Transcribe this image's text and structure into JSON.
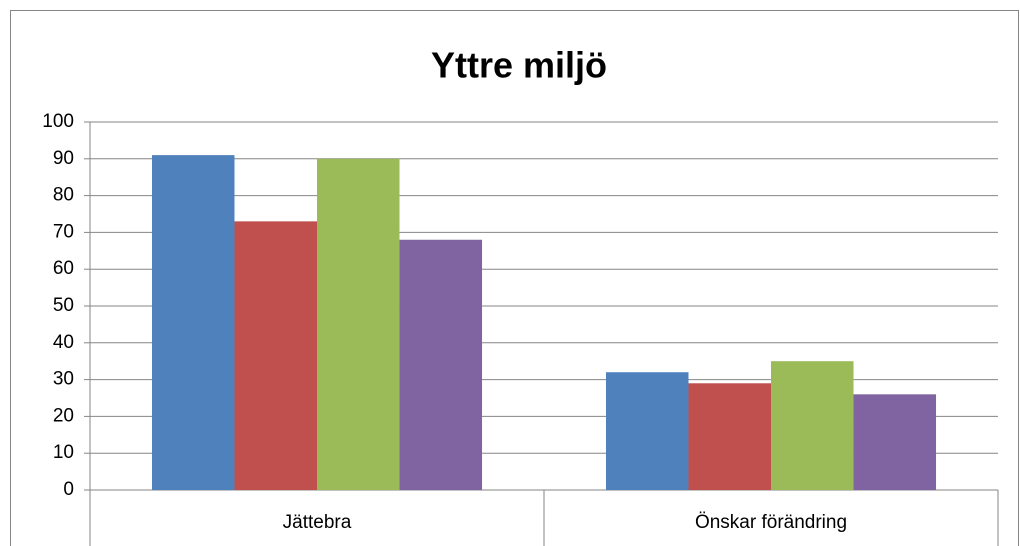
{
  "chart_data": {
    "type": "bar",
    "title": "Yttre miljö",
    "categories": [
      "Jättebra",
      "Önskar förändring"
    ],
    "series": [
      {
        "color": "#4f81bd",
        "values": [
          91,
          32
        ]
      },
      {
        "color": "#c0504d",
        "values": [
          73,
          29
        ]
      },
      {
        "color": "#9bbb59",
        "values": [
          90,
          35
        ]
      },
      {
        "color": "#8064a2",
        "values": [
          68,
          26
        ]
      }
    ],
    "ylim": [
      0,
      100
    ],
    "yticks": [
      0,
      10,
      20,
      30,
      40,
      50,
      60,
      70,
      80,
      90,
      100
    ],
    "grid": true
  }
}
